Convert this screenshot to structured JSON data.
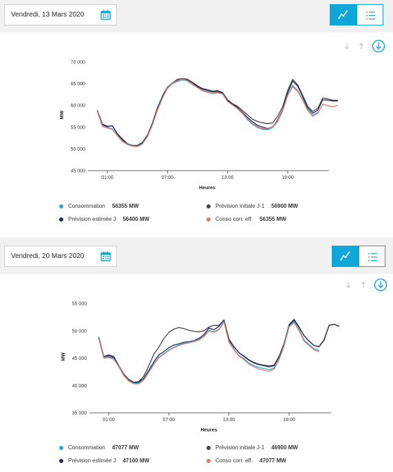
{
  "colors": {
    "consommation": "#2aa8d4",
    "prevision_j1": "#444444",
    "prevision_j": "#1e2a5a",
    "conso_corr": "#e07a66",
    "accent": "#0ea7d8"
  },
  "charts": [
    {
      "date_label": "Vendredi, 13 Mars 2020",
      "legend": {
        "consommation": {
          "label": "Consommation",
          "value": "56355 MW"
        },
        "prevision_j1": {
          "label": "Prévision initiale J-1",
          "value": "56900 MW"
        },
        "prevision_j": {
          "label": "Prévision estimée J",
          "value": "56400 MW"
        },
        "conso_corr": {
          "label": "Conso corr. eff.",
          "value": "56355 MW"
        }
      }
    },
    {
      "date_label": "Vendredi, 20 Mars 2020",
      "legend": {
        "consommation": {
          "label": "Consommation",
          "value": "47077 MW"
        },
        "prevision_j1": {
          "label": "Prévision initiale J-1",
          "value": "46900 MW"
        },
        "prevision_j": {
          "label": "Prévision estimée J",
          "value": "47100 MW"
        },
        "conso_corr": {
          "label": "Conso corr. eff.",
          "value": "47077 MW"
        }
      }
    }
  ],
  "chart_data": [
    {
      "type": "line",
      "xlabel": "Heures",
      "ylabel": "MW",
      "xticks": [
        "01:00",
        "07:00",
        "13:00",
        "19:00"
      ],
      "yticks": [
        "45 000",
        "50 000",
        "55 000",
        "60 000",
        "65 000",
        "70 000"
      ],
      "ylim": [
        45000,
        70000
      ],
      "xlim": [
        0,
        24
      ],
      "series": [
        {
          "name": "Prévision initiale J-1",
          "key": "prevision_j1",
          "x": [
            0,
            0.5,
            1,
            1.5,
            2,
            2.5,
            3,
            3.5,
            4,
            4.5,
            5,
            5.5,
            6,
            6.5,
            7,
            7.5,
            8,
            8.5,
            9,
            9.5,
            10,
            10.5,
            11,
            11.5,
            12,
            12.5,
            13,
            13.5,
            14,
            14.5,
            15,
            15.5,
            16,
            16.5,
            17,
            17.5,
            18,
            18.5,
            19,
            19.5,
            20,
            20.5,
            21,
            21.5,
            22,
            22.5,
            23,
            23.5,
            24
          ],
          "y": [
            58800,
            55600,
            55100,
            55300,
            53500,
            52300,
            51200,
            50800,
            50800,
            51500,
            53200,
            56000,
            59500,
            62200,
            64200,
            65200,
            66000,
            66200,
            66000,
            65300,
            64500,
            63900,
            63600,
            63300,
            63400,
            63000,
            61300,
            60400,
            59800,
            58800,
            57800,
            56800,
            56300,
            56000,
            55800,
            56000,
            57500,
            59700,
            63500,
            66000,
            64700,
            62300,
            59800,
            58600,
            59300,
            61700,
            61500,
            61200,
            61200
          ]
        },
        {
          "name": "Prévision estimée J",
          "key": "prevision_j",
          "x": [
            0,
            0.5,
            1,
            1.5,
            2,
            2.5,
            3,
            3.5,
            4,
            4.5,
            5,
            5.5,
            6,
            6.5,
            7,
            7.5,
            8,
            8.5,
            9,
            9.5,
            10,
            10.5,
            11,
            11.5,
            12,
            12.5,
            13,
            13.5,
            14,
            14.5,
            15,
            15.5,
            16,
            16.5,
            17,
            17.5,
            18,
            18.5,
            19,
            19.5,
            20,
            20.5,
            21,
            21.5,
            22,
            22.5,
            23,
            23.5,
            24
          ],
          "y": [
            58900,
            55700,
            55200,
            55300,
            53400,
            52100,
            51100,
            50700,
            50700,
            51400,
            53000,
            55800,
            59300,
            62000,
            64000,
            65100,
            65800,
            66100,
            65900,
            65200,
            64300,
            63700,
            63400,
            63100,
            63200,
            62900,
            61100,
            60300,
            59500,
            58400,
            57200,
            56200,
            55400,
            55000,
            54700,
            55100,
            56700,
            59000,
            62900,
            65600,
            64400,
            62000,
            59400,
            58200,
            58900,
            61300,
            61200,
            61000,
            61000
          ]
        },
        {
          "name": "Consommation",
          "key": "consommation",
          "x": [
            0,
            0.5,
            1,
            1.5,
            2,
            2.5,
            3,
            3.5,
            4,
            4.5,
            5,
            5.5,
            6,
            6.5,
            7,
            7.5,
            8,
            8.5,
            9,
            9.5,
            10,
            10.5,
            11,
            11.5,
            12,
            12.5,
            13,
            13.5,
            14,
            14.5,
            15,
            15.5,
            16,
            16.5,
            17,
            17.5,
            18,
            18.5,
            19,
            19.5,
            20,
            20.5,
            21,
            21.5,
            22
          ],
          "y": [
            58700,
            55300,
            54900,
            54600,
            53100,
            51800,
            51100,
            50700,
            50600,
            51200,
            52900,
            55600,
            59000,
            61800,
            63900,
            65000,
            65500,
            65900,
            65600,
            64800,
            64100,
            63300,
            63000,
            62700,
            62900,
            62600,
            60900,
            60100,
            59200,
            58100,
            56700,
            55600,
            54900,
            54500,
            54400,
            54900,
            56300,
            58700,
            62400,
            64600,
            63400,
            61400,
            59000,
            57700,
            58400
          ]
        },
        {
          "name": "Conso corr. eff.",
          "key": "conso_corr",
          "x": [
            0,
            0.5,
            1,
            1.5,
            2,
            2.5,
            3,
            3.5,
            4,
            4.5,
            5,
            5.5,
            6,
            6.5,
            7,
            7.5,
            8,
            8.5,
            9,
            9.5,
            10,
            10.5,
            11,
            11.5,
            12,
            12.5,
            13,
            13.5,
            14,
            14.5,
            15,
            15.5,
            16,
            16.5,
            17,
            17.5,
            18,
            18.5,
            19,
            19.5,
            20,
            20.5,
            21,
            21.5,
            22,
            22.5,
            23,
            23.5,
            24
          ],
          "y": [
            58600,
            55200,
            54800,
            54500,
            53000,
            51700,
            51000,
            50600,
            50500,
            51100,
            52800,
            55500,
            58900,
            61700,
            64000,
            65200,
            65700,
            66100,
            65700,
            64900,
            64100,
            63400,
            63100,
            62800,
            63000,
            62700,
            60900,
            60100,
            59300,
            58200,
            56900,
            55800,
            55100,
            54700,
            54600,
            55100,
            56500,
            58800,
            62300,
            64300,
            63200,
            61200,
            58800,
            57500,
            58200,
            60300,
            59900,
            59700,
            60000
          ]
        }
      ]
    },
    {
      "type": "line",
      "xlabel": "Heures",
      "ylabel": "MW",
      "xticks": [
        "01:00",
        "07:00",
        "13:00",
        "19:00"
      ],
      "yticks": [
        "35 000",
        "40 000",
        "45 000",
        "50 000",
        "55 000"
      ],
      "ylim": [
        35000,
        55000
      ],
      "xlim": [
        0,
        24
      ],
      "series": [
        {
          "name": "Prévision initiale J-1",
          "key": "prevision_j1",
          "x": [
            0,
            0.5,
            1,
            1.5,
            2,
            2.5,
            3,
            3.5,
            4,
            4.5,
            5,
            5.5,
            6,
            6.5,
            7,
            7.5,
            8,
            8.5,
            9,
            9.5,
            10,
            10.5,
            11,
            11.5,
            12,
            12.5,
            13,
            13.5,
            14,
            14.5,
            15,
            15.5,
            16,
            16.5,
            17,
            17.5,
            18,
            18.5,
            19,
            19.5,
            20,
            20.5,
            21,
            21.5,
            22,
            22.5,
            23,
            23.5,
            24
          ],
          "y": [
            48800,
            45100,
            45400,
            45100,
            43600,
            42100,
            41100,
            40600,
            40700,
            41700,
            43600,
            45700,
            47000,
            48600,
            49700,
            50300,
            50600,
            50400,
            50100,
            49900,
            49800,
            50000,
            50700,
            51000,
            51000,
            51900,
            48300,
            47000,
            46000,
            45400,
            44700,
            44200,
            43900,
            43700,
            43600,
            43700,
            45300,
            47600,
            51000,
            51900,
            50600,
            49100,
            48100,
            47300,
            47100,
            48300,
            51000,
            51200,
            50800
          ]
        },
        {
          "name": "Prévision estimée J",
          "key": "prevision_j",
          "x": [
            0,
            0.5,
            1,
            1.5,
            2,
            2.5,
            3,
            3.5,
            4,
            4.5,
            5,
            5.5,
            6,
            6.5,
            7,
            7.5,
            8,
            8.5,
            9,
            9.5,
            10,
            10.5,
            11,
            11.5,
            12,
            12.5,
            13,
            13.5,
            14,
            14.5,
            15,
            15.5,
            16,
            16.5,
            17,
            17.5,
            18,
            18.5,
            19,
            19.5,
            20,
            20.5,
            21,
            21.5,
            22,
            22.5,
            23,
            23.5,
            24
          ],
          "y": [
            48900,
            45300,
            45600,
            45300,
            43600,
            42000,
            41000,
            40500,
            40600,
            41300,
            42800,
            44300,
            45600,
            46200,
            46900,
            47400,
            47600,
            47900,
            48000,
            48200,
            48600,
            49300,
            50500,
            50200,
            50800,
            52000,
            48500,
            47100,
            46000,
            45300,
            44600,
            44100,
            43800,
            43600,
            43400,
            43600,
            45200,
            47600,
            51100,
            52100,
            50700,
            49100,
            48100,
            47300,
            47100,
            48400,
            51000,
            51200,
            50800
          ]
        },
        {
          "name": "Consommation",
          "key": "consommation",
          "x": [
            0,
            0.5,
            1,
            1.5,
            2,
            2.5,
            3,
            3.5,
            4,
            4.5,
            5,
            5.5,
            6,
            6.5,
            7,
            7.5,
            8,
            8.5,
            9,
            9.5,
            10,
            10.5,
            11,
            11.5,
            12,
            12.5,
            13,
            13.5,
            14,
            14.5,
            15,
            15.5,
            16,
            16.5,
            17,
            17.5,
            18,
            18.5,
            19,
            19.5,
            20,
            20.5,
            21,
            21.5,
            22
          ],
          "y": [
            48700,
            45100,
            45200,
            44900,
            43500,
            41900,
            40900,
            40400,
            40400,
            41100,
            42500,
            43900,
            45200,
            45800,
            46500,
            47000,
            47400,
            47700,
            47900,
            48100,
            48400,
            49000,
            50100,
            49800,
            50300,
            51700,
            48000,
            46600,
            45500,
            44900,
            44100,
            43600,
            43300,
            43100,
            42900,
            43200,
            44800,
            47300,
            50800,
            51700,
            50200,
            48300,
            47500,
            46700,
            46400
          ]
        },
        {
          "name": "Conso corr. eff.",
          "key": "conso_corr",
          "x": [
            0,
            0.5,
            1,
            1.5,
            2,
            2.5,
            3,
            3.5,
            4,
            4.5,
            5,
            5.5,
            6,
            6.5,
            7,
            7.5,
            8,
            8.5,
            9,
            9.5,
            10,
            10.5,
            11,
            11.5,
            12,
            12.5,
            13,
            13.5,
            14,
            14.5,
            15,
            15.5,
            16,
            16.5,
            17,
            17.5,
            18,
            18.5,
            19,
            19.5,
            20,
            20.5,
            21,
            21.5,
            22
          ],
          "y": [
            48600,
            45000,
            45100,
            44800,
            43400,
            41800,
            40800,
            40300,
            40300,
            41000,
            42400,
            43800,
            45100,
            45700,
            46400,
            46900,
            47300,
            47600,
            47800,
            48000,
            48300,
            48900,
            50000,
            49700,
            50200,
            51600,
            47900,
            46500,
            45400,
            44700,
            43900,
            43400,
            43000,
            42800,
            42600,
            43000,
            44700,
            47200,
            50700,
            51500,
            50000,
            48100,
            47300,
            46500,
            46200
          ]
        }
      ]
    }
  ]
}
